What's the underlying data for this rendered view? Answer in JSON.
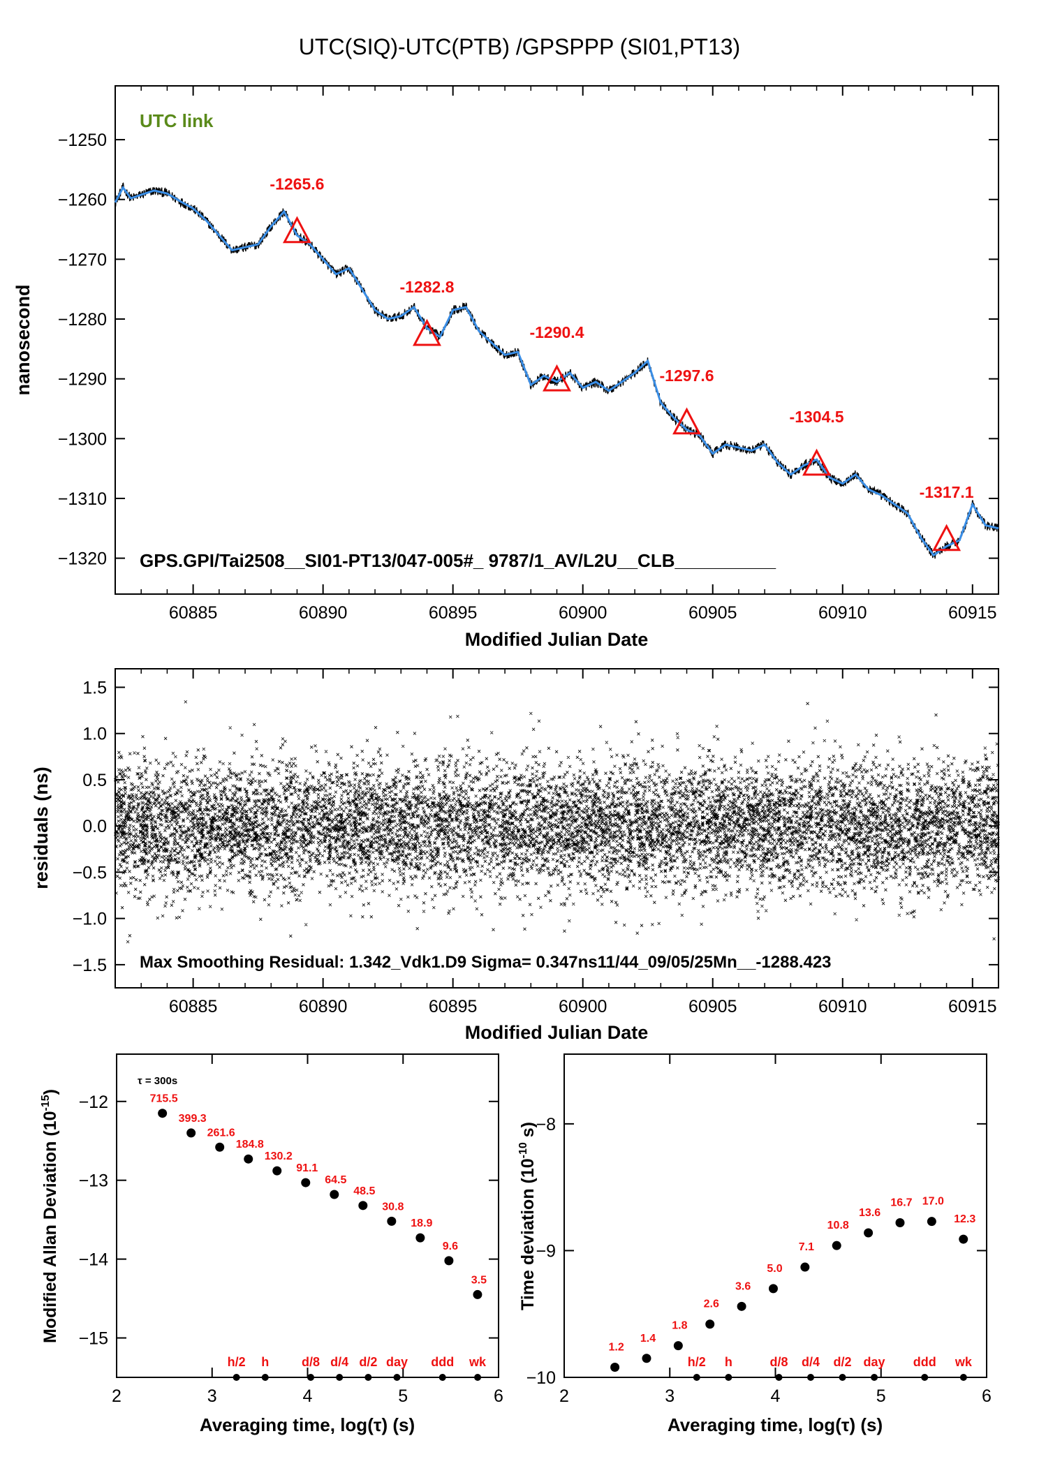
{
  "page_title": "UTC(SIQ)-UTC(PTB)  /GPSPPP  (SI01,PT13)",
  "chart_data": [
    {
      "id": "utc-link",
      "type": "line",
      "annotation": "UTC link",
      "info_line": "GPS.GPI/Tai2508__SI01-PT13/047-005#_  9787/1_AV/L2U__CLB__________",
      "xlabel": "Modified Julian Date",
      "ylabel": "nanosecond",
      "xlim": [
        60882,
        60916
      ],
      "ylim": [
        -1326,
        -1241
      ],
      "xticks": [
        60885,
        60890,
        60895,
        60900,
        60905,
        60910,
        60915
      ],
      "yticks": [
        -1250,
        -1260,
        -1270,
        -1280,
        -1290,
        -1300,
        -1310,
        -1320
      ],
      "series_colors": {
        "raw": "#000000",
        "smoothed": "#3a8ee6",
        "markers": "#ee1111",
        "annotation": "#5a8a1a"
      },
      "smoothed_curve": {
        "x": [
          60882.0,
          60882.3,
          60882.6,
          60883.0,
          60883.5,
          60884.0,
          60884.5,
          60885.0,
          60885.5,
          60886.0,
          60886.5,
          60887.0,
          60887.5,
          60888.0,
          60888.5,
          60889.0,
          60889.5,
          60890.0,
          60890.5,
          60891.0,
          60891.5,
          60892.0,
          60892.5,
          60893.0,
          60893.5,
          60894.0,
          60894.5,
          60895.0,
          60895.5,
          60896.0,
          60896.5,
          60897.0,
          60897.5,
          60898.0,
          60898.5,
          60899.0,
          60899.5,
          60900.0,
          60900.5,
          60901.0,
          60901.5,
          60902.0,
          60902.5,
          60903.0,
          60903.5,
          60904.0,
          60904.5,
          60905.0,
          60905.5,
          60906.0,
          60906.5,
          60907.0,
          60907.5,
          60908.0,
          60908.5,
          60909.0,
          60909.5,
          60910.0,
          60910.5,
          60911.0,
          60911.5,
          60912.0,
          60912.5,
          60913.0,
          60913.5,
          60914.0,
          60914.5,
          60915.0,
          60915.5,
          60916.0
        ],
        "y": [
          -1260.5,
          -1258.0,
          -1259.8,
          -1259.2,
          -1258.5,
          -1259.0,
          -1260.3,
          -1261.5,
          -1263.5,
          -1266.0,
          -1268.5,
          -1268.0,
          -1267.5,
          -1264.5,
          -1262.0,
          -1266.0,
          -1267.5,
          -1270.0,
          -1272.5,
          -1271.5,
          -1275.0,
          -1278.5,
          -1280.0,
          -1279.5,
          -1278.0,
          -1281.5,
          -1283.0,
          -1278.5,
          -1278.0,
          -1282.0,
          -1284.0,
          -1286.0,
          -1285.5,
          -1291.0,
          -1289.5,
          -1290.5,
          -1289.0,
          -1291.5,
          -1290.5,
          -1292.0,
          -1290.5,
          -1289.0,
          -1287.0,
          -1294.0,
          -1296.5,
          -1298.5,
          -1299.5,
          -1302.5,
          -1301.0,
          -1301.5,
          -1302.0,
          -1301.0,
          -1304.0,
          -1306.0,
          -1304.5,
          -1303.5,
          -1306.5,
          -1307.5,
          -1306.0,
          -1308.5,
          -1309.5,
          -1311.0,
          -1312.5,
          -1316.5,
          -1319.5,
          -1318.0,
          -1317.0,
          -1311.0,
          -1314.5,
          -1315.0
        ]
      },
      "noise_band_ns": 0.6,
      "markers": [
        {
          "x": 60889.0,
          "y": -1265.6,
          "label": "-1265.6"
        },
        {
          "x": 60894.0,
          "y": -1282.8,
          "label": "-1282.8"
        },
        {
          "x": 60899.0,
          "y": -1290.4,
          "label": "-1290.4"
        },
        {
          "x": 60904.0,
          "y": -1297.6,
          "label": "-1297.6"
        },
        {
          "x": 60909.0,
          "y": -1304.5,
          "label": "-1304.5"
        },
        {
          "x": 60914.0,
          "y": -1317.1,
          "label": "-1317.1"
        }
      ]
    },
    {
      "id": "residuals",
      "type": "scatter",
      "info_line": "Max Smoothing Residual: 1.342_Vdk1.D9  Sigma= 0.347ns11/44_09/05/25Mn__-1288.423",
      "xlabel": "Modified Julian Date",
      "ylabel": "residuals (ns)",
      "xlim": [
        60882,
        60916
      ],
      "ylim": [
        -1.75,
        1.7
      ],
      "xticks": [
        60885,
        60890,
        60895,
        60900,
        60905,
        60910,
        60915
      ],
      "yticks": [
        1.5,
        1.0,
        0.5,
        0.0,
        -0.5,
        -1.0,
        -1.5
      ],
      "ytick_labels": [
        "1.5",
        "1.0",
        "0.5",
        "0.0",
        "−0.5",
        "−1.0",
        "−1.5"
      ],
      "sigma_ns": 0.347,
      "max_abs_ns": 1.342,
      "point_count": 9787
    },
    {
      "id": "mdev",
      "type": "scatter",
      "tau0_label": "τ = 300s",
      "xlabel": "Averaging time, log(τ) (s)",
      "ylabel": "Modified Allan Deviation (10",
      "ylabel_exp": "-15",
      "ylabel_tail": ")",
      "xlim": [
        2,
        6
      ],
      "ylim": [
        -15.5,
        -11.4
      ],
      "xticks": [
        2,
        3,
        4,
        5,
        6
      ],
      "yticks": [
        -12,
        -13,
        -14,
        -15
      ],
      "x": [
        2.48,
        2.78,
        3.08,
        3.38,
        3.68,
        3.98,
        4.28,
        4.58,
        4.88,
        5.18,
        5.48,
        5.78
      ],
      "y": [
        -12.15,
        -12.4,
        -12.58,
        -12.73,
        -12.88,
        -13.03,
        -13.18,
        -13.32,
        -13.52,
        -13.73,
        -14.02,
        -14.45
      ],
      "value_labels": [
        "715.5",
        "399.3",
        "261.6",
        "184.8",
        "130.2",
        "91.1",
        "64.5",
        "48.5",
        "30.8",
        "18.9",
        "9.6",
        "3.5"
      ],
      "time_marks": [
        {
          "x": 3.255,
          "label": "h/2"
        },
        {
          "x": 3.556,
          "label": "h"
        },
        {
          "x": 4.033,
          "label": "d/8"
        },
        {
          "x": 4.334,
          "label": "d/4"
        },
        {
          "x": 4.635,
          "label": "d/2"
        },
        {
          "x": 4.936,
          "label": "day"
        },
        {
          "x": 5.413,
          "label": "ddd"
        },
        {
          "x": 5.781,
          "label": "wk"
        }
      ]
    },
    {
      "id": "tdev",
      "type": "scatter",
      "xlabel": "Averaging time, log(τ) (s)",
      "ylabel": "Time deviation (10",
      "ylabel_exp": "-10",
      "ylabel_tail": " s)",
      "xlim": [
        2,
        6
      ],
      "ylim": [
        -10.0,
        -7.45
      ],
      "xticks": [
        2,
        3,
        4,
        5,
        6
      ],
      "yticks": [
        -8,
        -9,
        -10
      ],
      "x": [
        2.48,
        2.78,
        3.08,
        3.38,
        3.68,
        3.98,
        4.28,
        4.58,
        4.88,
        5.18,
        5.48,
        5.78
      ],
      "y": [
        -9.92,
        -9.85,
        -9.75,
        -9.58,
        -9.44,
        -9.3,
        -9.13,
        -8.96,
        -8.86,
        -8.78,
        -8.77,
        -8.91
      ],
      "value_labels": [
        "1.2",
        "1.4",
        "1.8",
        "2.6",
        "3.6",
        "5.0",
        "7.1",
        "10.8",
        "13.6",
        "16.7",
        "17.0",
        "12.3"
      ],
      "time_marks": [
        {
          "x": 3.255,
          "label": "h/2"
        },
        {
          "x": 3.556,
          "label": "h"
        },
        {
          "x": 4.033,
          "label": "d/8"
        },
        {
          "x": 4.334,
          "label": "d/4"
        },
        {
          "x": 4.635,
          "label": "d/2"
        },
        {
          "x": 4.936,
          "label": "day"
        },
        {
          "x": 5.413,
          "label": "ddd"
        },
        {
          "x": 5.781,
          "label": "wk"
        }
      ]
    }
  ]
}
